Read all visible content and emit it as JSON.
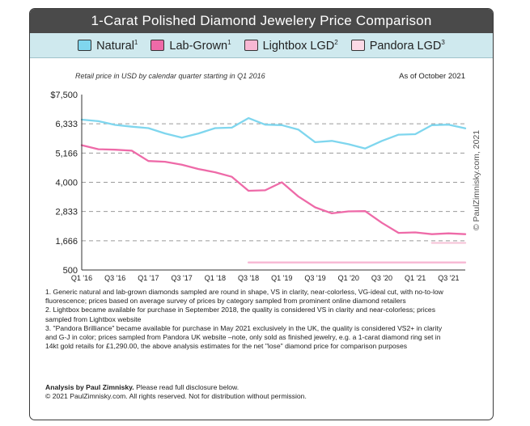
{
  "title": "1-Carat Polished Diamond Jewelery Price Comparison",
  "legend": [
    {
      "name": "Natural",
      "sup": "1",
      "color": "#7fd6ee"
    },
    {
      "name": "Lab-Grown",
      "sup": "1",
      "color": "#ee6aa8"
    },
    {
      "name": "Lightbox LGD",
      "sup": "2",
      "color": "#f7b7d3"
    },
    {
      "name": "Pandora LGD",
      "sup": "3",
      "color": "#fbd9e6"
    }
  ],
  "chart_data": {
    "type": "line",
    "subtitle": "Retail price in USD by calendar quarter starting in Q1 2016",
    "as_of": "As of October 2021",
    "ytick_labels": [
      "$7,500",
      "6,333",
      "5,166",
      "4,000",
      "2,833",
      "1,666",
      "500"
    ],
    "ylim": [
      500,
      7500
    ],
    "x": [
      "Q1 '16",
      "Q2 '16",
      "Q3 '16",
      "Q4 '16",
      "Q1 '17",
      "Q2 '17",
      "Q3 '17",
      "Q4 '17",
      "Q1 '18",
      "Q2 '18",
      "Q3 '18",
      "Q4 '18",
      "Q1 '19",
      "Q2 '19",
      "Q3 '19",
      "Q4 '19",
      "Q1 '20",
      "Q2 '20",
      "Q3 '20",
      "Q4 '20",
      "Q1 '21",
      "Q2 '21",
      "Q3 '21",
      "Q4 '21"
    ],
    "xtick_labels": [
      "Q1 '16",
      "Q3 '16",
      "Q1 '17",
      "Q3 '17",
      "Q1 '18",
      "Q3 '18",
      "Q1 '19",
      "Q3 '19",
      "Q1 '20",
      "Q3 '20",
      "Q1 '21",
      "Q3 '21"
    ],
    "series": [
      {
        "name": "Natural",
        "color": "#7fd6ee",
        "values": [
          6500,
          6440,
          6290,
          6220,
          6160,
          5950,
          5780,
          5950,
          6160,
          6180,
          6560,
          6300,
          6280,
          6100,
          5600,
          5650,
          5520,
          5350,
          5650,
          5900,
          5920,
          6280,
          6300,
          6150
        ]
      },
      {
        "name": "Lab-Grown",
        "color": "#ee6aa8",
        "values": [
          5480,
          5320,
          5300,
          5260,
          4850,
          4820,
          4700,
          4530,
          4400,
          4220,
          3660,
          3680,
          4000,
          3430,
          3000,
          2760,
          2840,
          2850,
          2380,
          1980,
          2000,
          1930,
          1960,
          1930
        ]
      },
      {
        "name": "Lightbox LGD",
        "color": "#f7b7d3",
        "values": [
          null,
          null,
          null,
          null,
          null,
          null,
          null,
          null,
          null,
          null,
          800,
          800,
          800,
          800,
          800,
          800,
          800,
          800,
          800,
          800,
          800,
          800,
          800,
          800
        ]
      },
      {
        "name": "Pandora LGD",
        "color": "#fbd9e6",
        "values": [
          null,
          null,
          null,
          null,
          null,
          null,
          null,
          null,
          null,
          null,
          null,
          null,
          null,
          null,
          null,
          null,
          null,
          null,
          null,
          null,
          null,
          1580,
          1580,
          1580
        ]
      }
    ],
    "grid": true
  },
  "copyright_vertical": "© PaulZimnisky.com, 2021",
  "notes": [
    "1. Generic natural and lab-grown diamonds sampled are round in shape, VS in clarity, near-colorless, VG-ideal cut, with no-to-low fluorescence; prices based on average survey of prices by category sampled from prominent online diamond retailers",
    "2. Lightbox became available for purchase in September 2018, the quality is considered VS in clarity and near-colorless; prices sampled from Lightbox website",
    "3. \"Pandora Brilliance\" became available for purchase in May 2021 exclusively in the UK, the quality is considered VS2+ in clarity and G-J in color; prices sampled from Pandora UK website –note, only sold as finished jewelry, e.g. a 1-carat diamond ring set in 14kt gold retails for £1,290.00, the above analysis estimates for the net \"lose\" diamond price for comparison purposes"
  ],
  "credit": {
    "analysis_bold": "Analysis by Paul Zimnisky.",
    "analysis_rest": " Please read full disclosure below.",
    "rights": "© 2021 PaulZimnisky.com. All rights reserved. Not for distribution without permission."
  }
}
